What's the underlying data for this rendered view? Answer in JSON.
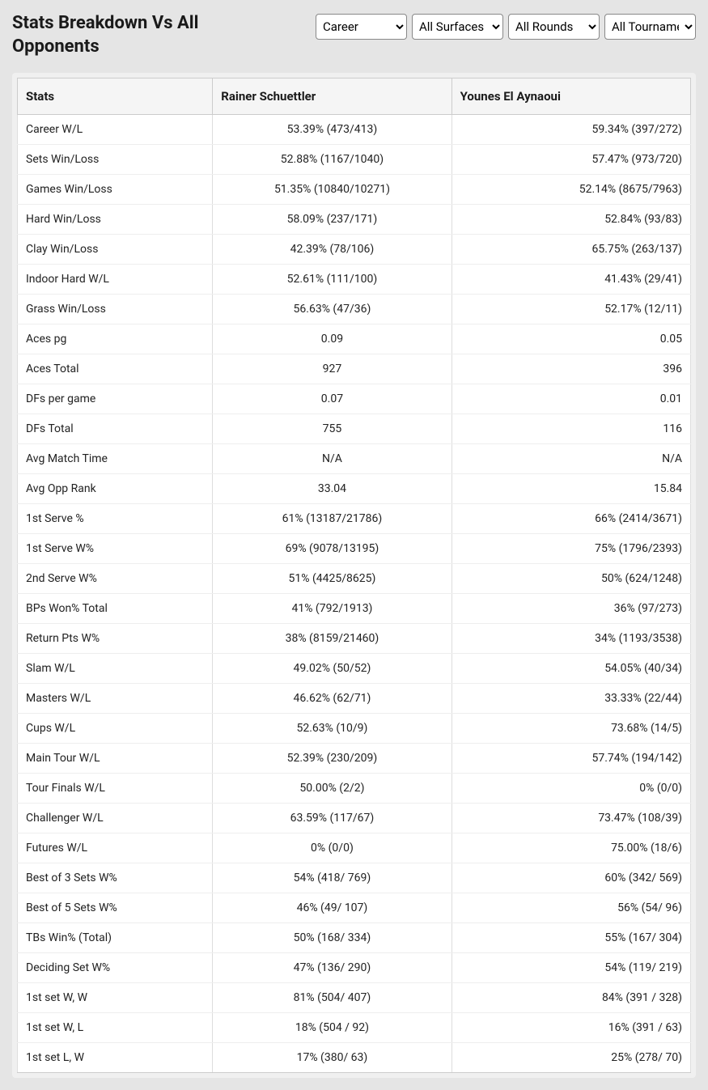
{
  "title": "Stats Breakdown Vs All Opponents",
  "filters": {
    "period": {
      "selected": "Career",
      "options": [
        "Career"
      ]
    },
    "surface": {
      "selected": "All Surfaces",
      "options": [
        "All Surfaces"
      ]
    },
    "round": {
      "selected": "All Rounds",
      "options": [
        "All Rounds"
      ]
    },
    "tournament": {
      "selected": "All Tournaments",
      "options": [
        "All Tournaments"
      ]
    }
  },
  "columns": {
    "stats": "Stats",
    "player1": "Rainer Schuettler",
    "player2": "Younes El Aynaoui"
  },
  "rows": [
    {
      "stat": "Career W/L",
      "p1": "53.39% (473/413)",
      "p2": "59.34% (397/272)"
    },
    {
      "stat": "Sets Win/Loss",
      "p1": "52.88% (1167/1040)",
      "p2": "57.47% (973/720)"
    },
    {
      "stat": "Games Win/Loss",
      "p1": "51.35% (10840/10271)",
      "p2": "52.14% (8675/7963)"
    },
    {
      "stat": "Hard Win/Loss",
      "p1": "58.09% (237/171)",
      "p2": "52.84% (93/83)"
    },
    {
      "stat": "Clay Win/Loss",
      "p1": "42.39% (78/106)",
      "p2": "65.75% (263/137)"
    },
    {
      "stat": "Indoor Hard W/L",
      "p1": "52.61% (111/100)",
      "p2": "41.43% (29/41)"
    },
    {
      "stat": "Grass Win/Loss",
      "p1": "56.63% (47/36)",
      "p2": "52.17% (12/11)"
    },
    {
      "stat": "Aces pg",
      "p1": "0.09",
      "p2": "0.05"
    },
    {
      "stat": "Aces Total",
      "p1": "927",
      "p2": "396"
    },
    {
      "stat": "DFs per game",
      "p1": "0.07",
      "p2": "0.01"
    },
    {
      "stat": "DFs Total",
      "p1": "755",
      "p2": "116"
    },
    {
      "stat": "Avg Match Time",
      "p1": "N/A",
      "p2": "N/A"
    },
    {
      "stat": "Avg Opp Rank",
      "p1": "33.04",
      "p2": "15.84"
    },
    {
      "stat": "1st Serve %",
      "p1": "61% (13187/21786)",
      "p2": "66% (2414/3671)"
    },
    {
      "stat": "1st Serve W%",
      "p1": "69% (9078/13195)",
      "p2": "75% (1796/2393)"
    },
    {
      "stat": "2nd Serve W%",
      "p1": "51% (4425/8625)",
      "p2": "50% (624/1248)"
    },
    {
      "stat": "BPs Won% Total",
      "p1": "41% (792/1913)",
      "p2": "36% (97/273)"
    },
    {
      "stat": "Return Pts W%",
      "p1": "38% (8159/21460)",
      "p2": "34% (1193/3538)"
    },
    {
      "stat": "Slam W/L",
      "p1": "49.02% (50/52)",
      "p2": "54.05% (40/34)"
    },
    {
      "stat": "Masters W/L",
      "p1": "46.62% (62/71)",
      "p2": "33.33% (22/44)"
    },
    {
      "stat": "Cups W/L",
      "p1": "52.63% (10/9)",
      "p2": "73.68% (14/5)"
    },
    {
      "stat": "Main Tour W/L",
      "p1": "52.39% (230/209)",
      "p2": "57.74% (194/142)"
    },
    {
      "stat": "Tour Finals W/L",
      "p1": "50.00% (2/2)",
      "p2": "0% (0/0)"
    },
    {
      "stat": "Challenger W/L",
      "p1": "63.59% (117/67)",
      "p2": "73.47% (108/39)"
    },
    {
      "stat": "Futures W/L",
      "p1": "0% (0/0)",
      "p2": "75.00% (18/6)"
    },
    {
      "stat": "Best of 3 Sets W%",
      "p1": "54% (418/ 769)",
      "p2": "60% (342/ 569)"
    },
    {
      "stat": "Best of 5 Sets W%",
      "p1": "46% (49/ 107)",
      "p2": "56% (54/ 96)"
    },
    {
      "stat": "TBs Win% (Total)",
      "p1": "50% (168/ 334)",
      "p2": "55% (167/ 304)"
    },
    {
      "stat": "Deciding Set W%",
      "p1": "47% (136/ 290)",
      "p2": "54% (119/ 219)"
    },
    {
      "stat": "1st set W, W",
      "p1": "81% (504/ 407)",
      "p2": "84% (391 / 328)"
    },
    {
      "stat": "1st set W, L",
      "p1": "18% (504 / 92)",
      "p2": "16% (391 / 63)"
    },
    {
      "stat": "1st set L, W",
      "p1": "17% (380/ 63)",
      "p2": "25% (278/ 70)"
    }
  ]
}
